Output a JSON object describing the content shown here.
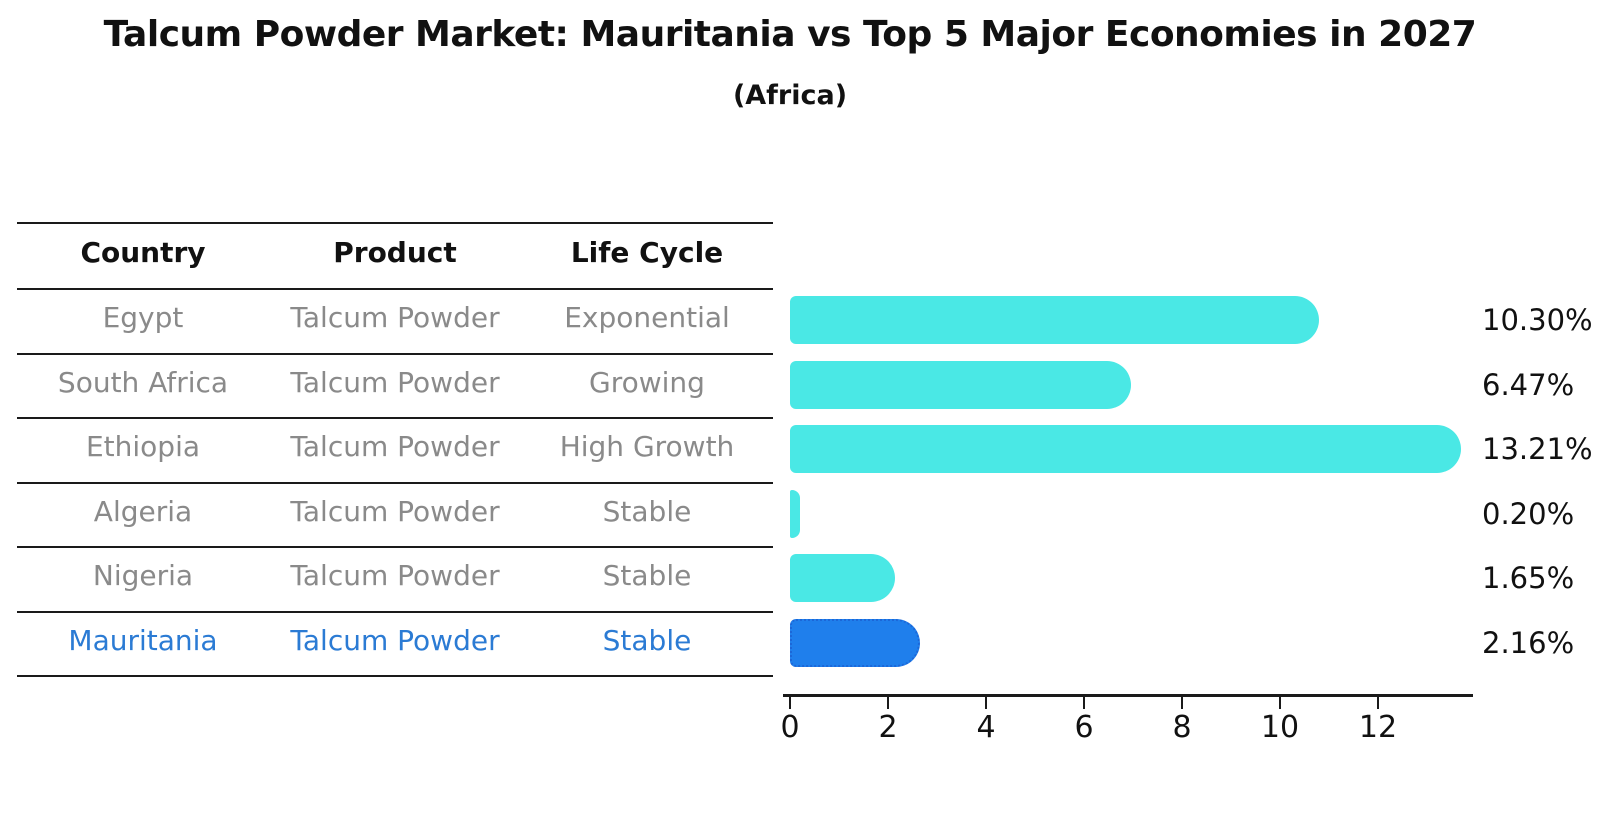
{
  "title": "Talcum Powder Market: Mauritania vs Top 5 Major Economies in 2027",
  "subtitle": "(Africa)",
  "table": {
    "headers": [
      "Country",
      "Product",
      "Life Cycle"
    ],
    "rows": [
      {
        "country": "Egypt",
        "product": "Talcum Powder",
        "life_cycle": "Exponential",
        "highlight": false
      },
      {
        "country": "South Africa",
        "product": "Talcum Powder",
        "life_cycle": "Growing",
        "highlight": false
      },
      {
        "country": "Ethiopia",
        "product": "Talcum Powder",
        "life_cycle": "High Growth",
        "highlight": false
      },
      {
        "country": "Algeria",
        "product": "Talcum Powder",
        "life_cycle": "Stable",
        "highlight": false
      },
      {
        "country": "Nigeria",
        "product": "Talcum Powder",
        "life_cycle": "Stable",
        "highlight": false
      },
      {
        "country": "Mauritania",
        "product": "Talcum Powder",
        "life_cycle": "Stable",
        "highlight": true
      }
    ]
  },
  "chart_data": {
    "type": "bar",
    "orientation": "horizontal",
    "title": "Talcum Powder Market: Mauritania vs Top 5 Major Economies in 2027 (Africa)",
    "categories": [
      "Egypt",
      "South Africa",
      "Ethiopia",
      "Algeria",
      "Nigeria",
      "Mauritania"
    ],
    "values": [
      10.3,
      6.47,
      13.21,
      0.2,
      1.65,
      2.16
    ],
    "value_labels": [
      "10.30%",
      "6.47%",
      "13.21%",
      "0.20%",
      "1.65%",
      "2.16%"
    ],
    "x_ticks": [
      0,
      2,
      4,
      6,
      8,
      10,
      12
    ],
    "xlim": [
      0,
      13.9
    ],
    "grid": false,
    "legend_position": "none",
    "bar_color": "#4AE8E5",
    "highlight_index": 5,
    "highlight_color": "#1F7FEC",
    "highlight_border_color": "#1C67D8"
  },
  "colors": {
    "text_primary": "#111111",
    "table_text": "#8A8A8A",
    "highlight_text": "#2B7BD4",
    "background": "#FFFFFF"
  }
}
